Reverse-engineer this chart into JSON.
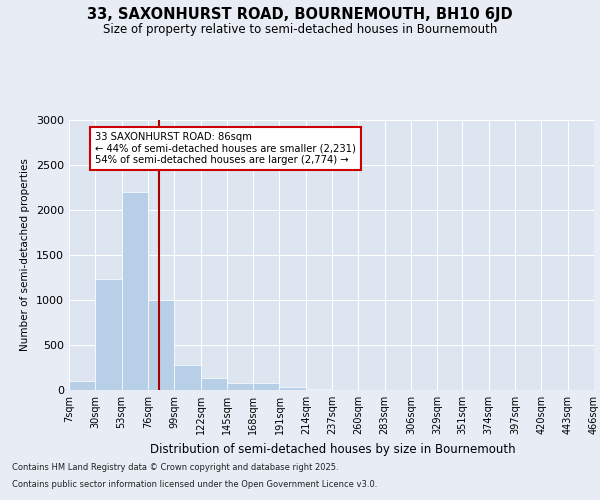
{
  "title_line1": "33, SAXONHURST ROAD, BOURNEMOUTH, BH10 6JD",
  "title_line2": "Size of property relative to semi-detached houses in Bournemouth",
  "xlabel": "Distribution of semi-detached houses by size in Bournemouth",
  "ylabel": "Number of semi-detached properties",
  "footnote1": "Contains HM Land Registry data © Crown copyright and database right 2025.",
  "footnote2": "Contains public sector information licensed under the Open Government Licence v3.0.",
  "annotation_title": "33 SAXONHURST ROAD: 86sqm",
  "annotation_line2": "← 44% of semi-detached houses are smaller (2,231)",
  "annotation_line3": "54% of semi-detached houses are larger (2,774) →",
  "property_size": 86,
  "bin_edges": [
    7,
    30,
    53,
    76,
    99,
    122,
    145,
    168,
    191,
    214,
    237,
    260,
    283,
    306,
    329,
    351,
    374,
    397,
    420,
    443,
    466
  ],
  "bin_labels": [
    "7sqm",
    "30sqm",
    "53sqm",
    "76sqm",
    "99sqm",
    "122sqm",
    "145sqm",
    "168sqm",
    "191sqm",
    "214sqm",
    "237sqm",
    "260sqm",
    "283sqm",
    "306sqm",
    "329sqm",
    "351sqm",
    "374sqm",
    "397sqm",
    "420sqm",
    "443sqm",
    "466sqm"
  ],
  "counts": [
    100,
    1230,
    2200,
    1000,
    280,
    130,
    80,
    80,
    30,
    10,
    5,
    0,
    0,
    0,
    0,
    5,
    0,
    0,
    0,
    0
  ],
  "bar_color": "#b8cfe8",
  "line_color": "#aa0000",
  "background_color": "#e8edf5",
  "plot_bg_color": "#dce5f0",
  "annotation_box_color": "#ffffff",
  "annotation_border_color": "#cc0000",
  "ylim": [
    0,
    3000
  ],
  "yticks": [
    0,
    500,
    1000,
    1500,
    2000,
    2500,
    3000
  ]
}
